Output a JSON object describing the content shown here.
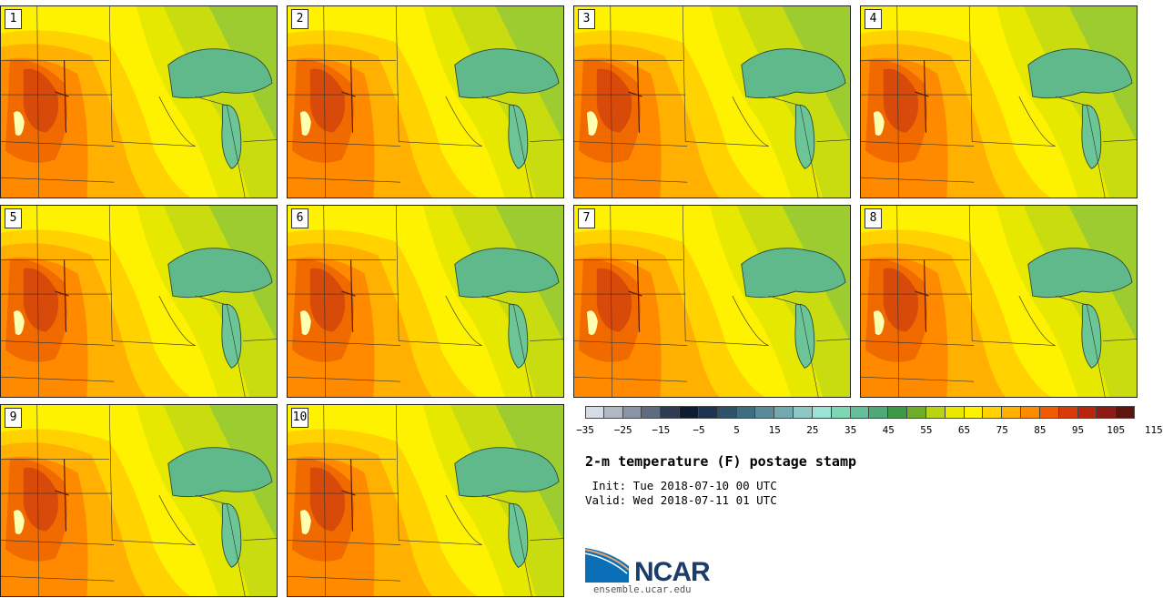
{
  "panels": [
    {
      "label": "1"
    },
    {
      "label": "2"
    },
    {
      "label": "3"
    },
    {
      "label": "4"
    },
    {
      "label": "5"
    },
    {
      "label": "6"
    },
    {
      "label": "7"
    },
    {
      "label": "8"
    },
    {
      "label": "9"
    },
    {
      "label": "10"
    }
  ],
  "colorbar": {
    "colors": [
      "#d6dce6",
      "#b0b8c4",
      "#8a95a6",
      "#5e6b80",
      "#2d3a52",
      "#0f1a33",
      "#1d3450",
      "#2e5068",
      "#3f6d80",
      "#5a8a98",
      "#72a8b0",
      "#8cc8c6",
      "#9ce3d6",
      "#7ed6b4",
      "#64c09a",
      "#4fa878",
      "#3d9a44",
      "#6fae2a",
      "#b9d415",
      "#e8e800",
      "#fff200",
      "#ffd200",
      "#ffb000",
      "#ff8a00",
      "#f05a00",
      "#d83a0a",
      "#b82610",
      "#8e1a14",
      "#5c160e"
    ],
    "tick_labels": [
      "−35",
      "−25",
      "−15",
      "−5",
      "5",
      "15",
      "25",
      "35",
      "45",
      "55",
      "65",
      "75",
      "85",
      "95",
      "105",
      "115"
    ]
  },
  "title": "2-m temperature (F) postage stamp",
  "init": " Init: Tue 2018-07-10 00 UTC",
  "valid": "Valid: Wed 2018-07-11 01 UTC",
  "logo": {
    "name": "NCAR",
    "url": "ensemble.ucar.edu"
  }
}
